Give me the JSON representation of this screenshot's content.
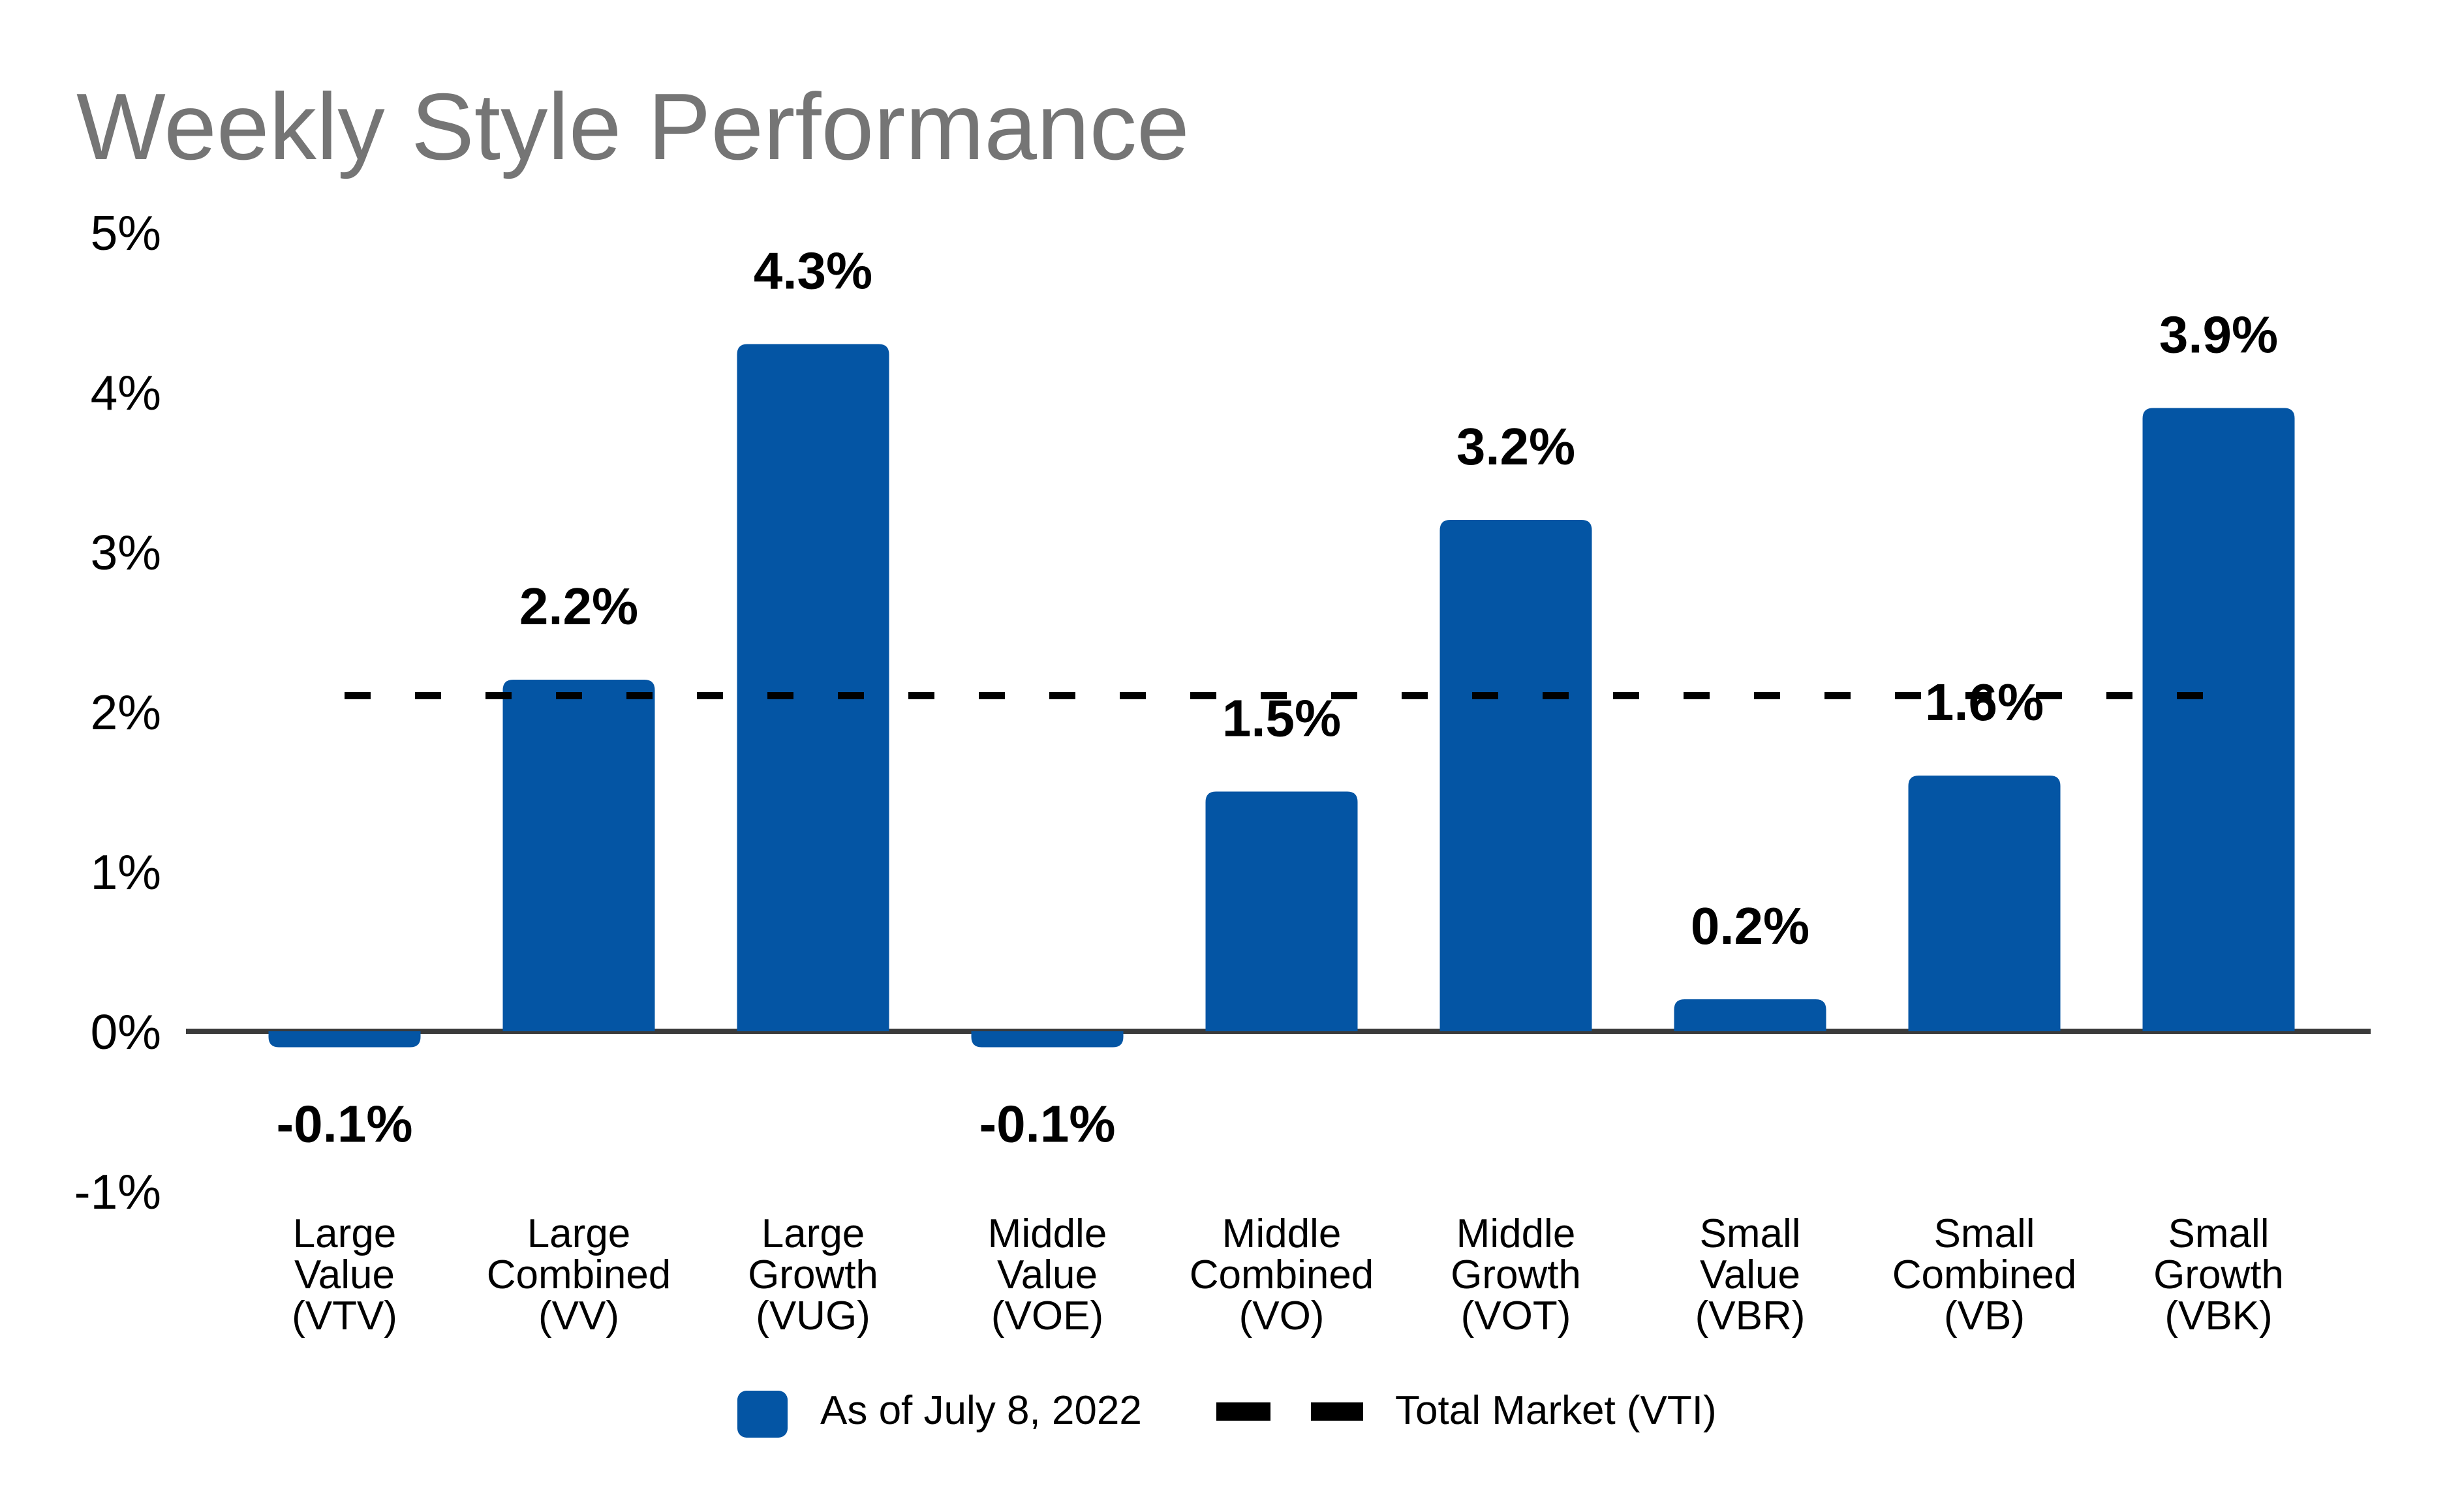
{
  "title": "Weekly Style Performance",
  "colors": {
    "bar": "#0455A4",
    "title_text": "#757575",
    "axis_line": "#3A3A3A",
    "value_label_text": "#000000",
    "reference_line": "#000000",
    "background": "#FFFFFF"
  },
  "legend": {
    "series_label": "As of July 8, 2022",
    "reference_label": "Total Market (VTI)"
  },
  "chart_data": {
    "type": "bar",
    "title": "Weekly Style Performance",
    "categories": [
      "Large Value (VTV)",
      "Large Combined (VV)",
      "Large Growth (VUG)",
      "Middle Value (VOE)",
      "Middle Combined (VO)",
      "Middle Growth (VOT)",
      "Small Value (VBR)",
      "Small Combined (VB)",
      "Small Growth (VBK)"
    ],
    "series": [
      {
        "name": "As of July 8, 2022",
        "values": [
          -0.1,
          2.2,
          4.3,
          -0.1,
          1.5,
          3.2,
          0.2,
          1.6,
          3.9
        ],
        "value_labels": [
          "-0.1%",
          "2.2%",
          "4.3%",
          "-0.1%",
          "1.5%",
          "3.2%",
          "0.2%",
          "1.6%",
          "3.9%"
        ]
      }
    ],
    "reference_line": {
      "name": "Total Market (VTI)",
      "value": 2.1,
      "style": "dashed"
    },
    "xlabel": "",
    "ylabel": "",
    "y_ticks": [
      {
        "value": 5,
        "label": "5%"
      },
      {
        "value": 4,
        "label": "4%"
      },
      {
        "value": 3,
        "label": "3%"
      },
      {
        "value": 2,
        "label": "2%"
      },
      {
        "value": 1,
        "label": "1%"
      },
      {
        "value": 0,
        "label": "0%"
      },
      {
        "value": -1,
        "label": "-1%"
      }
    ],
    "ylim": [
      -1,
      5
    ],
    "grid": false,
    "legend_position": "bottom"
  }
}
